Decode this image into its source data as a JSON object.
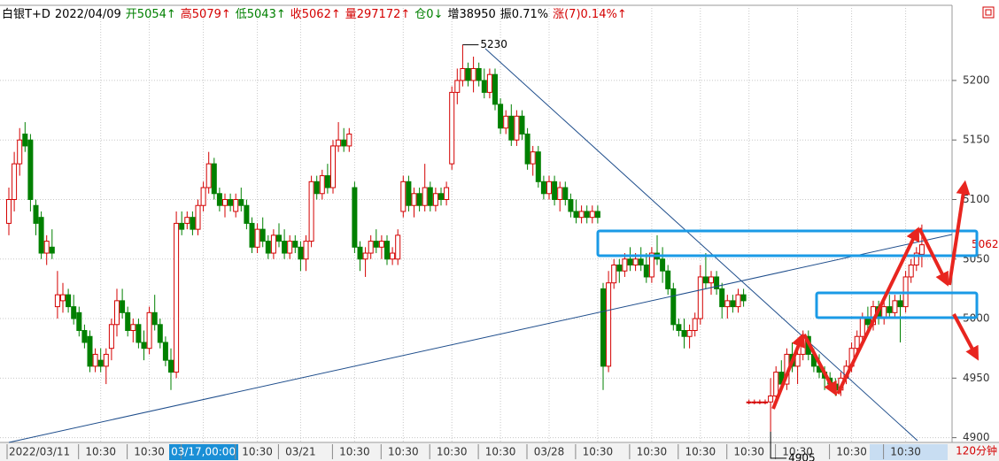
{
  "chart_data": {
    "type": "candlestick",
    "header": [
      "白银T+D",
      "2022/04/09",
      "开5054↑",
      "高5079↑",
      "低5043↑",
      "收5062↑",
      "量297172↑",
      "仓0↓",
      "增38950",
      "振0.71%",
      "涨(7)0.14%↑"
    ],
    "header_colors": [
      "#000000",
      "#000000",
      "#008000",
      "#d40000",
      "#008000",
      "#d40000",
      "#d40000",
      "#008000",
      "#000000",
      "#000000",
      "#d40000"
    ],
    "period": "120分钟",
    "up_color": "#d40000",
    "down_color": "#008000",
    "last_price_color": "#d40000",
    "grid": true,
    "ylim": [
      4896,
      5249
    ],
    "yticks": [
      4900,
      4950,
      5000,
      5050,
      5100,
      5150,
      5200
    ],
    "annotations": [
      {
        "value": 5230,
        "index": 84
      },
      {
        "value": 4905,
        "index": 141
      }
    ],
    "categories": [
      "2022/03/11",
      null,
      null,
      null,
      null,
      null,
      null,
      null,
      null,
      null,
      null,
      null,
      null,
      null,
      null,
      null,
      null,
      "10:30",
      null,
      null,
      null,
      null,
      null,
      null,
      null,
      null,
      "10:30",
      null,
      null,
      null,
      null,
      null,
      null,
      null,
      null,
      null,
      "03/17,00:00",
      null,
      null,
      null,
      null,
      null,
      null,
      null,
      null,
      null,
      "10:30",
      null,
      null,
      null,
      null,
      null,
      null,
      null,
      "03/21",
      null,
      null,
      null,
      null,
      null,
      null,
      null,
      null,
      null,
      "10:30",
      null,
      null,
      null,
      null,
      null,
      null,
      null,
      null,
      "10:30",
      null,
      null,
      null,
      null,
      null,
      null,
      null,
      null,
      "10:30",
      null,
      null,
      null,
      null,
      null,
      null,
      null,
      null,
      "10:30",
      null,
      null,
      null,
      null,
      null,
      null,
      null,
      null,
      "03/28",
      null,
      null,
      null,
      null,
      null,
      null,
      null,
      null,
      "10:30",
      null,
      null,
      null,
      null,
      null,
      null,
      null,
      null,
      null,
      "10:30",
      null,
      null,
      null,
      null,
      null,
      null,
      null,
      null,
      "10:30",
      null,
      null,
      null,
      null,
      null,
      null,
      null,
      null,
      "10:30",
      null,
      null,
      null,
      null,
      null,
      null,
      null,
      null,
      "10:30",
      null,
      null,
      null,
      null,
      null,
      null,
      null,
      null,
      null,
      "10:30",
      null,
      null,
      null,
      null,
      null,
      null,
      null,
      null,
      null,
      "10:30",
      null,
      null,
      null
    ],
    "ohlc": [
      [
        5080,
        5110,
        5070,
        5100
      ],
      [
        5100,
        5140,
        5090,
        5130
      ],
      [
        5130,
        5160,
        5120,
        5150
      ],
      [
        5155,
        5165,
        5140,
        5145
      ],
      [
        5150,
        5155,
        5090,
        5100
      ],
      [
        5095,
        5100,
        5070,
        5080
      ],
      [
        5085,
        5090,
        5050,
        5055
      ],
      [
        5055,
        5070,
        5045,
        5065
      ],
      [
        5060,
        5075,
        5050,
        5055
      ],
      [
        5010,
        5040,
        5000,
        5020
      ],
      [
        5015,
        5030,
        5005,
        5020
      ],
      [
        5020,
        5025,
        5005,
        5010
      ],
      [
        5010,
        5020,
        4995,
        5000
      ],
      [
        5005,
        5010,
        4985,
        4990
      ],
      [
        4990,
        4995,
        4975,
        4980
      ],
      [
        4985,
        4990,
        4955,
        4960
      ],
      [
        4960,
        4975,
        4955,
        4970
      ],
      [
        4965,
        4975,
        4955,
        4960
      ],
      [
        4960,
        4975,
        4945,
        4970
      ],
      [
        4975,
        5000,
        4965,
        4995
      ],
      [
        4995,
        5025,
        4985,
        5015
      ],
      [
        5015,
        5025,
        5000,
        5005
      ],
      [
        5005,
        5010,
        4985,
        4990
      ],
      [
        4990,
        5000,
        4980,
        4995
      ],
      [
        4995,
        5000,
        4975,
        4980
      ],
      [
        4980,
        4990,
        4965,
        4975
      ],
      [
        4975,
        5010,
        4970,
        5005
      ],
      [
        5005,
        5020,
        4990,
        4995
      ],
      [
        4995,
        5000,
        4975,
        4980
      ],
      [
        4980,
        4985,
        4960,
        4965
      ],
      [
        4965,
        4975,
        4940,
        4955
      ],
      [
        4955,
        5090,
        4950,
        5080
      ],
      [
        5080,
        5090,
        5070,
        5075
      ],
      [
        5080,
        5090,
        5075,
        5085
      ],
      [
        5085,
        5090,
        5070,
        5075
      ],
      [
        5075,
        5100,
        5070,
        5095
      ],
      [
        5095,
        5115,
        5090,
        5110
      ],
      [
        5110,
        5140,
        5105,
        5130
      ],
      [
        5130,
        5135,
        5100,
        5105
      ],
      [
        5105,
        5110,
        5090,
        5095
      ],
      [
        5095,
        5105,
        5085,
        5100
      ],
      [
        5100,
        5105,
        5090,
        5095
      ],
      [
        5090,
        5105,
        5085,
        5100
      ],
      [
        5100,
        5110,
        5090,
        5095
      ],
      [
        5095,
        5100,
        5075,
        5080
      ],
      [
        5080,
        5085,
        5055,
        5060
      ],
      [
        5060,
        5080,
        5055,
        5075
      ],
      [
        5075,
        5085,
        5060,
        5065
      ],
      [
        5065,
        5070,
        5050,
        5055
      ],
      [
        5055,
        5075,
        5050,
        5070
      ],
      [
        5070,
        5080,
        5060,
        5065
      ],
      [
        5065,
        5075,
        5050,
        5055
      ],
      [
        5055,
        5070,
        5050,
        5065
      ],
      [
        5065,
        5070,
        5055,
        5060
      ],
      [
        5060,
        5065,
        5040,
        5050
      ],
      [
        5050,
        5070,
        5040,
        5065
      ],
      [
        5065,
        5120,
        5060,
        5115
      ],
      [
        5115,
        5120,
        5100,
        5105
      ],
      [
        5105,
        5125,
        5100,
        5120
      ],
      [
        5120,
        5130,
        5105,
        5110
      ],
      [
        5110,
        5150,
        5105,
        5145
      ],
      [
        5145,
        5165,
        5140,
        5150
      ],
      [
        5150,
        5160,
        5140,
        5145
      ],
      [
        5145,
        5160,
        5140,
        5155
      ],
      [
        5110,
        5115,
        5055,
        5060
      ],
      [
        5060,
        5065,
        5040,
        5050
      ],
      [
        5050,
        5060,
        5035,
        5055
      ],
      [
        5055,
        5070,
        5050,
        5065
      ],
      [
        5065,
        5075,
        5055,
        5060
      ],
      [
        5060,
        5070,
        5050,
        5065
      ],
      [
        5065,
        5070,
        5045,
        5050
      ],
      [
        5050,
        5060,
        5045,
        5055
      ],
      [
        5050,
        5075,
        5045,
        5070
      ],
      [
        5090,
        5120,
        5085,
        5115
      ],
      [
        5115,
        5120,
        5090,
        5095
      ],
      [
        5095,
        5110,
        5085,
        5105
      ],
      [
        5105,
        5110,
        5090,
        5095
      ],
      [
        5095,
        5130,
        5090,
        5110
      ],
      [
        5110,
        5115,
        5090,
        5095
      ],
      [
        5095,
        5110,
        5090,
        5105
      ],
      [
        5105,
        5110,
        5095,
        5100
      ],
      [
        5100,
        5115,
        5095,
        5110
      ],
      [
        5130,
        5195,
        5125,
        5190
      ],
      [
        5190,
        5210,
        5180,
        5200
      ],
      [
        5200,
        5230,
        5195,
        5210
      ],
      [
        5210,
        5215,
        5195,
        5200
      ],
      [
        5200,
        5220,
        5190,
        5210
      ],
      [
        5210,
        5215,
        5195,
        5200
      ],
      [
        5200,
        5210,
        5185,
        5190
      ],
      [
        5190,
        5210,
        5185,
        5205
      ],
      [
        5205,
        5210,
        5175,
        5180
      ],
      [
        5180,
        5185,
        5155,
        5160
      ],
      [
        5160,
        5175,
        5155,
        5170
      ],
      [
        5170,
        5180,
        5145,
        5150
      ],
      [
        5150,
        5175,
        5145,
        5170
      ],
      [
        5170,
        5175,
        5150,
        5155
      ],
      [
        5155,
        5160,
        5125,
        5130
      ],
      [
        5130,
        5145,
        5120,
        5140
      ],
      [
        5140,
        5145,
        5110,
        5115
      ],
      [
        5115,
        5120,
        5100,
        5105
      ],
      [
        5105,
        5120,
        5100,
        5115
      ],
      [
        5115,
        5120,
        5095,
        5100
      ],
      [
        5100,
        5115,
        5090,
        5110
      ],
      [
        5110,
        5115,
        5095,
        5100
      ],
      [
        5100,
        5105,
        5085,
        5090
      ],
      [
        5090,
        5100,
        5080,
        5085
      ],
      [
        5085,
        5095,
        5080,
        5090
      ],
      [
        5090,
        5095,
        5080,
        5085
      ],
      [
        5085,
        5095,
        5080,
        5090
      ],
      [
        5090,
        5095,
        5080,
        5085
      ],
      [
        5025,
        5030,
        4940,
        4960
      ],
      [
        4960,
        5040,
        4955,
        5030
      ],
      [
        5030,
        5050,
        5025,
        5045
      ],
      [
        5045,
        5050,
        5030,
        5040
      ],
      [
        5040,
        5055,
        5035,
        5050
      ],
      [
        5050,
        5060,
        5040,
        5045
      ],
      [
        5045,
        5055,
        5040,
        5050
      ],
      [
        5050,
        5060,
        5040,
        5045
      ],
      [
        5045,
        5055,
        5030,
        5035
      ],
      [
        5035,
        5060,
        5030,
        5055
      ],
      [
        5055,
        5070,
        5045,
        5050
      ],
      [
        5050,
        5060,
        5030,
        5040
      ],
      [
        5040,
        5045,
        5020,
        5025
      ],
      [
        5025,
        5030,
        4990,
        4995
      ],
      [
        4995,
        5000,
        4985,
        4990
      ],
      [
        4990,
        5000,
        4975,
        4985
      ],
      [
        4985,
        4995,
        4975,
        4990
      ],
      [
        4990,
        5005,
        4985,
        5000
      ],
      [
        5000,
        5045,
        4995,
        5035
      ],
      [
        5035,
        5055,
        5025,
        5030
      ],
      [
        5030,
        5040,
        5020,
        5035
      ],
      [
        5035,
        5040,
        5020,
        5025
      ],
      [
        5025,
        5030,
        5000,
        5010
      ],
      [
        5010,
        5020,
        5000,
        5015
      ],
      [
        5015,
        5020,
        5005,
        5010
      ],
      [
        5010,
        5025,
        5005,
        5020
      ],
      [
        5020,
        5025,
        5010,
        5015
      ],
      [
        4930,
        4932,
        4928,
        4930
      ],
      [
        4930,
        4932,
        4928,
        4930
      ],
      [
        4930,
        4932,
        4928,
        4930
      ],
      [
        4930,
        4932,
        4928,
        4930
      ],
      [
        4930,
        4950,
        4905,
        4935
      ],
      [
        4935,
        4960,
        4930,
        4955
      ],
      [
        4955,
        4965,
        4940,
        4945
      ],
      [
        4945,
        4975,
        4940,
        4970
      ],
      [
        4970,
        4980,
        4955,
        4960
      ],
      [
        4960,
        4975,
        4945,
        4970
      ],
      [
        4970,
        4990,
        4965,
        4985
      ],
      [
        4985,
        4990,
        4965,
        4970
      ],
      [
        4970,
        4975,
        4955,
        4960
      ],
      [
        4960,
        4970,
        4950,
        4955
      ],
      [
        4955,
        4960,
        4940,
        4950
      ],
      [
        4950,
        4955,
        4940,
        4945
      ],
      [
        4945,
        4950,
        4935,
        4940
      ],
      [
        4940,
        4955,
        4935,
        4950
      ],
      [
        4950,
        4965,
        4945,
        4960
      ],
      [
        4960,
        4980,
        4955,
        4975
      ],
      [
        4975,
        4990,
        4970,
        4985
      ],
      [
        4985,
        5005,
        4980,
        5000
      ],
      [
        5000,
        5010,
        4990,
        4995
      ],
      [
        4995,
        5015,
        4990,
        5010
      ],
      [
        5010,
        5015,
        4995,
        5000
      ],
      [
        5000,
        5015,
        4995,
        5010
      ],
      [
        5010,
        5020,
        5000,
        5005
      ],
      [
        5005,
        5020,
        5000,
        5015
      ],
      [
        5015,
        5020,
        4980,
        5010
      ],
      [
        5010,
        5040,
        5005,
        5035
      ],
      [
        5035,
        5050,
        5030,
        5045
      ],
      [
        5045,
        5060,
        5040,
        5055
      ],
      [
        5054,
        5079,
        5043,
        5062
      ]
    ]
  }
}
